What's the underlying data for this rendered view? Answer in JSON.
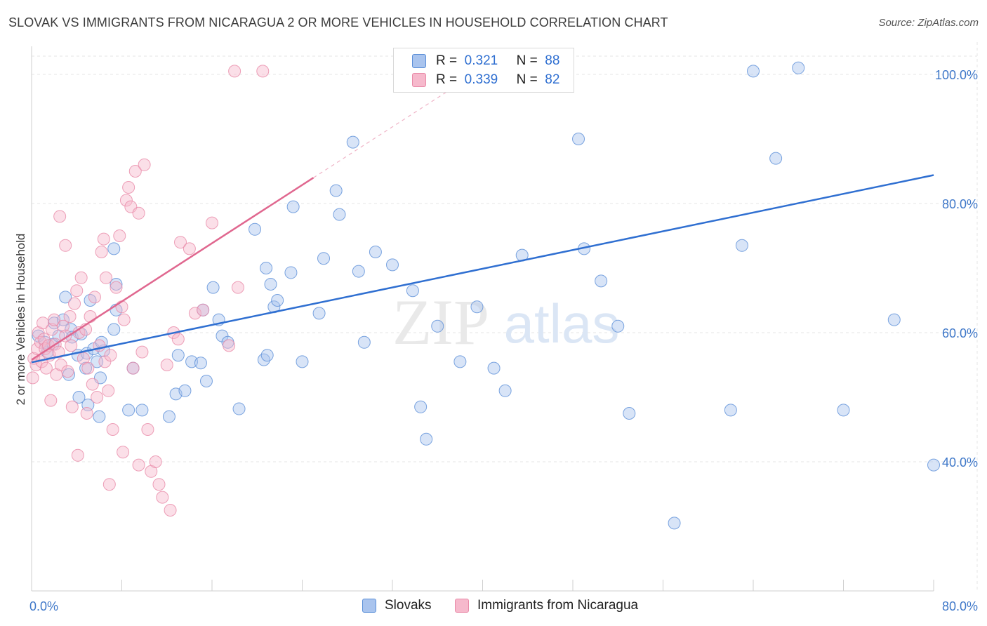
{
  "title": "SLOVAK VS IMMIGRANTS FROM NICARAGUA 2 OR MORE VEHICLES IN HOUSEHOLD CORRELATION CHART",
  "source": "Source: ZipAtlas.com",
  "watermark": {
    "zip": "ZIP",
    "atlas": "atlas"
  },
  "legend": {
    "r_label": "R =",
    "n_label": "N =",
    "rows": [
      {
        "series": "Slovaks",
        "r": "0.321",
        "n": "88",
        "fill": "#a9c4ee",
        "stroke": "#5b8fd8"
      },
      {
        "series": "Immigrants from Nicaragua",
        "r": "0.339",
        "n": "82",
        "fill": "#f6b9cc",
        "stroke": "#e98aa8"
      }
    ]
  },
  "colors": {
    "blue_line": "#2f6fd1",
    "pink_line": "#e0678f",
    "axis_text": "#3f78c9",
    "grid": "#e6e6e6"
  },
  "chart_data": {
    "type": "scatter",
    "title": "SLOVAK VS IMMIGRANTS FROM NICARAGUA 2 OR MORE VEHICLES IN HOUSEHOLD CORRELATION CHART",
    "xlabel": "",
    "ylabel": "2 or more Vehicles in Household",
    "xlim": [
      0,
      80
    ],
    "ylim": [
      20,
      105
    ],
    "x_tick_labels": [
      "0.0%",
      "80.0%"
    ],
    "y_ticks": [
      40,
      60,
      80,
      100
    ],
    "y_tick_labels": [
      "40.0%",
      "60.0%",
      "80.0%",
      "100.0%"
    ],
    "grid": true,
    "legend_position": "top-center",
    "series": [
      {
        "name": "Slovaks",
        "trend": {
          "x": [
            0,
            80
          ],
          "y": [
            55.4,
            84.4
          ]
        },
        "points": [
          [
            0.6,
            59.5
          ],
          [
            1.4,
            57.0
          ],
          [
            1.2,
            58.5
          ],
          [
            1.9,
            58.2
          ],
          [
            2.0,
            61.5
          ],
          [
            2.4,
            59.5
          ],
          [
            2.8,
            62.0
          ],
          [
            3.0,
            65.5
          ],
          [
            3.5,
            60.5
          ],
          [
            3.6,
            59.3
          ],
          [
            3.3,
            53.5
          ],
          [
            4.1,
            56.5
          ],
          [
            4.2,
            50.0
          ],
          [
            4.4,
            59.8
          ],
          [
            4.8,
            54.5
          ],
          [
            4.9,
            56.8
          ],
          [
            5.0,
            48.8
          ],
          [
            5.2,
            65.0
          ],
          [
            5.5,
            57.5
          ],
          [
            5.8,
            55.5
          ],
          [
            6.0,
            47.0
          ],
          [
            6.4,
            57.2
          ],
          [
            6.2,
            58.5
          ],
          [
            6.1,
            53.0
          ],
          [
            7.3,
            73.0
          ],
          [
            7.5,
            63.5
          ],
          [
            7.3,
            60.5
          ],
          [
            7.5,
            67.5
          ],
          [
            8.6,
            48.0
          ],
          [
            9.0,
            54.5
          ],
          [
            9.8,
            48.0
          ],
          [
            12.2,
            47.0
          ],
          [
            12.8,
            50.5
          ],
          [
            13.0,
            56.5
          ],
          [
            13.6,
            51.0
          ],
          [
            14.2,
            55.5
          ],
          [
            15.0,
            55.3
          ],
          [
            15.5,
            52.5
          ],
          [
            15.2,
            63.5
          ],
          [
            16.1,
            67.0
          ],
          [
            16.6,
            62.0
          ],
          [
            16.9,
            59.5
          ],
          [
            18.4,
            48.2
          ],
          [
            17.4,
            58.5
          ],
          [
            19.8,
            76.0
          ],
          [
            20.8,
            70.0
          ],
          [
            20.6,
            55.8
          ],
          [
            20.9,
            56.5
          ],
          [
            21.2,
            67.5
          ],
          [
            21.5,
            64.0
          ],
          [
            21.8,
            65.0
          ],
          [
            23.0,
            69.3
          ],
          [
            23.2,
            79.5
          ],
          [
            24.0,
            55.5
          ],
          [
            25.5,
            63.0
          ],
          [
            25.9,
            71.5
          ],
          [
            27.0,
            82.0
          ],
          [
            27.3,
            78.3
          ],
          [
            28.5,
            89.5
          ],
          [
            29.0,
            69.5
          ],
          [
            29.5,
            58.5
          ],
          [
            30.5,
            72.5
          ],
          [
            32.0,
            70.5
          ],
          [
            33.8,
            66.5
          ],
          [
            34.5,
            48.5
          ],
          [
            35.0,
            43.5
          ],
          [
            38.0,
            55.5
          ],
          [
            36.0,
            61.0
          ],
          [
            39.5,
            64.0
          ],
          [
            41.0,
            54.5
          ],
          [
            42.0,
            51.0
          ],
          [
            43.5,
            72.0
          ],
          [
            47.0,
            100.5
          ],
          [
            48.5,
            90.0
          ],
          [
            49.0,
            73.0
          ],
          [
            50.5,
            68.0
          ],
          [
            52.0,
            61.0
          ],
          [
            53.0,
            47.5
          ],
          [
            57.0,
            30.5
          ],
          [
            62.0,
            48.0
          ],
          [
            63.0,
            73.5
          ],
          [
            64.0,
            100.5
          ],
          [
            66.0,
            87.0
          ],
          [
            68.0,
            101.0
          ],
          [
            72.0,
            48.0
          ],
          [
            76.5,
            62.0
          ],
          [
            80.0,
            39.5
          ],
          [
            81.0,
            58.0
          ]
        ]
      },
      {
        "name": "Immigrants from Nicaragua",
        "trend": {
          "x": [
            0,
            25
          ],
          "y": [
            55.8,
            84.0
          ]
        },
        "trend_extension": {
          "x": [
            25,
            37
          ],
          "y": [
            84.0,
            97.5
          ]
        },
        "points": [
          [
            0.1,
            53.0
          ],
          [
            0.2,
            56.0
          ],
          [
            0.4,
            55.0
          ],
          [
            0.5,
            57.5
          ],
          [
            0.6,
            60.0
          ],
          [
            0.8,
            58.5
          ],
          [
            0.9,
            55.5
          ],
          [
            1.0,
            61.5
          ],
          [
            1.1,
            59.0
          ],
          [
            1.2,
            57.5
          ],
          [
            1.3,
            54.5
          ],
          [
            1.5,
            58.0
          ],
          [
            1.6,
            56.5
          ],
          [
            1.8,
            60.5
          ],
          [
            2.0,
            62.0
          ],
          [
            2.1,
            58.2
          ],
          [
            2.2,
            53.5
          ],
          [
            2.4,
            57.0
          ],
          [
            2.6,
            55.0
          ],
          [
            2.8,
            61.0
          ],
          [
            3.0,
            59.5
          ],
          [
            3.2,
            54.0
          ],
          [
            3.4,
            62.5
          ],
          [
            3.5,
            58.0
          ],
          [
            3.6,
            48.5
          ],
          [
            3.8,
            64.5
          ],
          [
            4.0,
            66.5
          ],
          [
            4.2,
            60.0
          ],
          [
            4.4,
            68.5
          ],
          [
            4.6,
            56.0
          ],
          [
            4.8,
            60.5
          ],
          [
            5.0,
            54.5
          ],
          [
            5.2,
            62.5
          ],
          [
            5.4,
            52.0
          ],
          [
            5.6,
            65.5
          ],
          [
            5.8,
            50.0
          ],
          [
            6.0,
            58.0
          ],
          [
            6.2,
            72.5
          ],
          [
            6.4,
            74.5
          ],
          [
            6.5,
            55.5
          ],
          [
            6.6,
            68.5
          ],
          [
            6.8,
            51.0
          ],
          [
            7.0,
            56.5
          ],
          [
            7.2,
            45.0
          ],
          [
            7.5,
            67.0
          ],
          [
            7.8,
            75.0
          ],
          [
            8.0,
            64.0
          ],
          [
            8.2,
            62.0
          ],
          [
            8.4,
            80.5
          ],
          [
            8.6,
            82.5
          ],
          [
            8.8,
            79.5
          ],
          [
            9.0,
            54.5
          ],
          [
            9.2,
            85.0
          ],
          [
            9.5,
            78.5
          ],
          [
            9.8,
            57.0
          ],
          [
            10.0,
            86.0
          ],
          [
            10.3,
            45.0
          ],
          [
            10.6,
            38.5
          ],
          [
            11.0,
            40.0
          ],
          [
            11.3,
            36.5
          ],
          [
            11.6,
            34.5
          ],
          [
            12.0,
            55.0
          ],
          [
            12.3,
            32.5
          ],
          [
            12.6,
            60.0
          ],
          [
            13.0,
            59.0
          ],
          [
            13.2,
            74.0
          ],
          [
            14.0,
            73.0
          ],
          [
            14.5,
            63.0
          ],
          [
            15.2,
            63.5
          ],
          [
            16.0,
            77.0
          ],
          [
            17.5,
            58.0
          ],
          [
            18.3,
            67.0
          ],
          [
            18.0,
            100.5
          ],
          [
            20.5,
            100.5
          ],
          [
            2.5,
            78.0
          ],
          [
            3.0,
            73.5
          ],
          [
            1.7,
            49.5
          ],
          [
            4.9,
            47.5
          ],
          [
            6.9,
            36.5
          ],
          [
            9.5,
            39.5
          ],
          [
            8.1,
            41.5
          ],
          [
            4.1,
            41.0
          ]
        ]
      }
    ]
  },
  "bottom_legend": [
    "Slovaks",
    "Immigrants from Nicaragua"
  ]
}
